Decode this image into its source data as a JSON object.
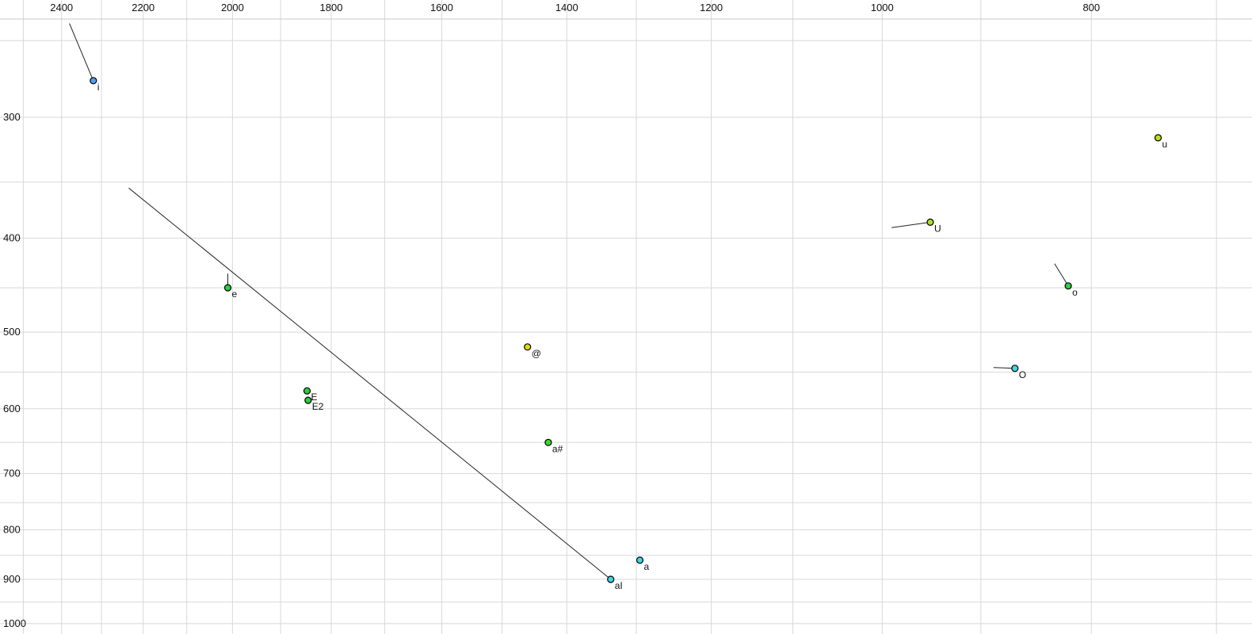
{
  "chart_data": {
    "type": "scatter",
    "description": "vowel-formant-plot",
    "x_axis": {
      "scale": "log",
      "reversed": true,
      "domain": [
        2563,
        674
      ],
      "tick_labels": [
        2400,
        2200,
        2000,
        1800,
        1600,
        1400,
        1200,
        1000,
        800
      ],
      "gridlines": [
        2500,
        2400,
        2300,
        2200,
        2100,
        2000,
        1900,
        1800,
        1700,
        1600,
        1500,
        1400,
        1300,
        1200,
        1100,
        1000,
        900,
        800,
        700
      ]
    },
    "y_axis": {
      "scale": "log",
      "reversed": false,
      "domain": [
        227,
        1025
      ],
      "tick_labels": [
        300,
        400,
        500,
        600,
        700,
        800,
        900,
        1000
      ],
      "gridlines": [
        250,
        300,
        350,
        400,
        450,
        500,
        550,
        600,
        650,
        700,
        750,
        800,
        850,
        900,
        950,
        1000
      ]
    },
    "grid_color": "#d8d8d8",
    "axis_line_color": "#c9c9c9",
    "trajectory_color": "#222222",
    "point_stroke_color": "#000000",
    "point_radius": 4,
    "points": [
      {
        "label": "i",
        "f2": 2320,
        "f1": 275,
        "color": "#4f9df0",
        "trajectory_to": {
          "f2": 2380,
          "f1": 240
        }
      },
      {
        "label": "u",
        "f2": 745,
        "f1": 315,
        "color": "#b5e01e"
      },
      {
        "label": "U",
        "f2": 950,
        "f1": 385,
        "color": "#a8e020",
        "trajectory_to": {
          "f2": 990,
          "f1": 390
        }
      },
      {
        "label": "e",
        "f2": 2010,
        "f1": 450,
        "color": "#2ecc40",
        "trajectory_to": {
          "f2": 2010,
          "f1": 435
        }
      },
      {
        "label": "o",
        "f2": 820,
        "f1": 448,
        "color": "#2ecc40",
        "trajectory_to": {
          "f2": 832,
          "f1": 425
        }
      },
      {
        "label": "@",
        "f2": 1460,
        "f1": 518,
        "color": "#e3d51c"
      },
      {
        "label": "O",
        "f2": 868,
        "f1": 545,
        "color": "#3fd6e0",
        "trajectory_to": {
          "f2": 888,
          "f1": 544
        }
      },
      {
        "label": "E",
        "f2": 1847,
        "f1": 575,
        "color": "#2ecc40"
      },
      {
        "label": "E2",
        "f2": 1845,
        "f1": 588,
        "color": "#2ecc40"
      },
      {
        "label": "a#",
        "f2": 1428,
        "f1": 650,
        "color": "#3bd62a"
      },
      {
        "label": "a",
        "f2": 1295,
        "f1": 860,
        "color": "#3fd6e0"
      },
      {
        "label": "aI",
        "f2": 1336,
        "f1": 900,
        "color": "#3fd6e0",
        "trajectory_to": {
          "f2": 2234,
          "f1": 355
        }
      }
    ]
  }
}
